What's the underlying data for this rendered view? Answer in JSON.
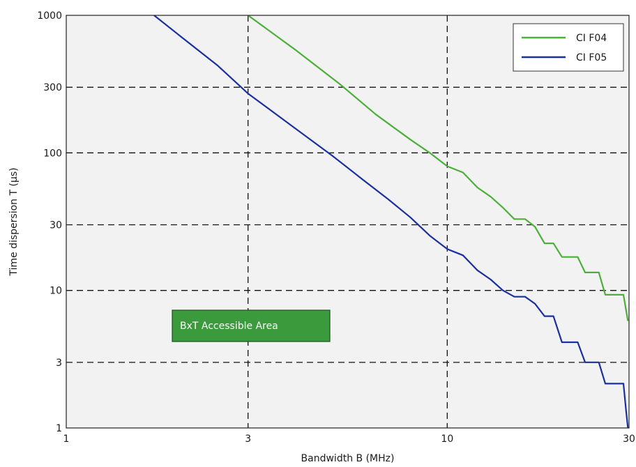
{
  "chart_data": {
    "type": "line",
    "title": "",
    "xlabel": "Bandwidth B (MHz)",
    "ylabel": "Time dispersion T (µs)",
    "xscale": "log",
    "yscale": "log",
    "xlim": [
      1,
      30
    ],
    "ylim": [
      1,
      1000
    ],
    "xticks": [
      1,
      3,
      10,
      30
    ],
    "xtick_labels": [
      "1",
      "3",
      "10",
      "30"
    ],
    "yticks": [
      1,
      3,
      10,
      30,
      100,
      300,
      1000
    ],
    "ytick_labels": [
      "1",
      "3",
      "10",
      "30",
      "100",
      "300",
      "1000"
    ],
    "grid": "dashed",
    "legend_position": "top-right",
    "annotation": "BxT Accessible Area",
    "series": [
      {
        "name": "CI F04",
        "color": "#4caf3a",
        "x": [
          3.0,
          4.0,
          5.2,
          6.5,
          8.0,
          9.0,
          10.0,
          11.0,
          12.0,
          13.0,
          14.0,
          15.0,
          16.0,
          17.0,
          18.0,
          19.0,
          20.0,
          21.0,
          22.0,
          23.0,
          24.0,
          25.0,
          26.0,
          27.0,
          28.0,
          29.0,
          29.8
        ],
        "y": [
          1000,
          560,
          320,
          190,
          125,
          100,
          80,
          72,
          56,
          48,
          40,
          33,
          33,
          29,
          22,
          22,
          17.5,
          17.5,
          17.5,
          13.5,
          13.5,
          13.5,
          9.3,
          9.3,
          9.3,
          9.3,
          6.0
        ]
      },
      {
        "name": "CI F05",
        "color": "#1a2fa0",
        "x": [
          1.7,
          2.0,
          2.5,
          3.0,
          4.0,
          5.0,
          6.0,
          7.0,
          8.0,
          9.0,
          10.0,
          11.0,
          12.0,
          13.0,
          14.0,
          15.0,
          16.0,
          17.0,
          18.0,
          19.0,
          20.0,
          21.0,
          22.0,
          23.0,
          24.0,
          25.0,
          26.0,
          27.0,
          28.0,
          29.0,
          29.5,
          29.8
        ],
        "y": [
          1000,
          700,
          430,
          270,
          150,
          95,
          64,
          46,
          34,
          25,
          20,
          18,
          14,
          12,
          10,
          9,
          9,
          8,
          6.5,
          6.5,
          4.2,
          4.2,
          4.2,
          3.0,
          3.0,
          3.0,
          2.1,
          2.1,
          2.1,
          2.1,
          1.3,
          1.0
        ]
      }
    ]
  }
}
